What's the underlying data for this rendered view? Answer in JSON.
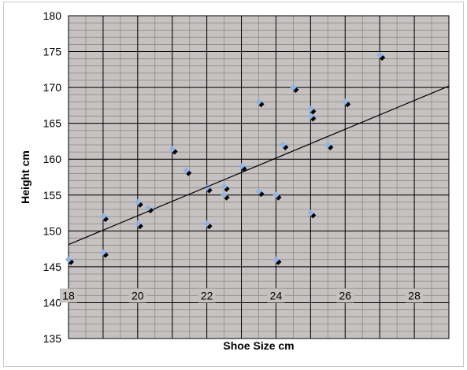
{
  "chart_data": {
    "type": "scatter",
    "title": "",
    "xlabel": "Shoe Size cm",
    "ylabel": "Height cm",
    "xlim": [
      18,
      29
    ],
    "ylim": [
      135,
      180
    ],
    "xticks": [
      18,
      20,
      22,
      24,
      26,
      28
    ],
    "yticks": [
      135,
      140,
      145,
      150,
      155,
      160,
      165,
      170,
      175,
      180
    ],
    "x_tick_labels": [
      "18",
      "20",
      "22",
      "24",
      "26",
      "28"
    ],
    "y_tick_labels": [
      "135",
      "140",
      "145",
      "150",
      "155",
      "160",
      "165",
      "170",
      "175",
      "180"
    ],
    "x_grid_step": 0.5,
    "y_grid_step": 1,
    "grid": true,
    "legend": "none",
    "marker_color": "#8fb3e2",
    "shadow_color": "#000000",
    "plot_background": "#c6c2c2",
    "minor_grid_color": "#8e8a8a",
    "major_grid_color": "#000000",
    "trendline": {
      "x": [
        18,
        29
      ],
      "y": [
        148.1,
        170.2
      ],
      "color": "#000000"
    },
    "points": [
      {
        "x": 18.0,
        "y": 146.0
      },
      {
        "x": 19.0,
        "y": 152.0
      },
      {
        "x": 19.0,
        "y": 147.0
      },
      {
        "x": 20.0,
        "y": 154.0
      },
      {
        "x": 20.0,
        "y": 151.0
      },
      {
        "x": 20.3,
        "y": 153.2
      },
      {
        "x": 21.0,
        "y": 161.4
      },
      {
        "x": 21.4,
        "y": 158.4
      },
      {
        "x": 22.0,
        "y": 156.0
      },
      {
        "x": 22.0,
        "y": 151.0
      },
      {
        "x": 22.5,
        "y": 156.2
      },
      {
        "x": 22.5,
        "y": 155.0
      },
      {
        "x": 23.0,
        "y": 159.0
      },
      {
        "x": 23.5,
        "y": 168.0
      },
      {
        "x": 23.5,
        "y": 155.5
      },
      {
        "x": 24.0,
        "y": 155.0
      },
      {
        "x": 24.0,
        "y": 146.0
      },
      {
        "x": 24.2,
        "y": 162.0
      },
      {
        "x": 24.5,
        "y": 170.0
      },
      {
        "x": 25.0,
        "y": 167.0
      },
      {
        "x": 25.0,
        "y": 166.0
      },
      {
        "x": 25.0,
        "y": 152.5
      },
      {
        "x": 25.5,
        "y": 162.0
      },
      {
        "x": 26.0,
        "y": 168.0
      },
      {
        "x": 27.0,
        "y": 174.5
      }
    ]
  }
}
